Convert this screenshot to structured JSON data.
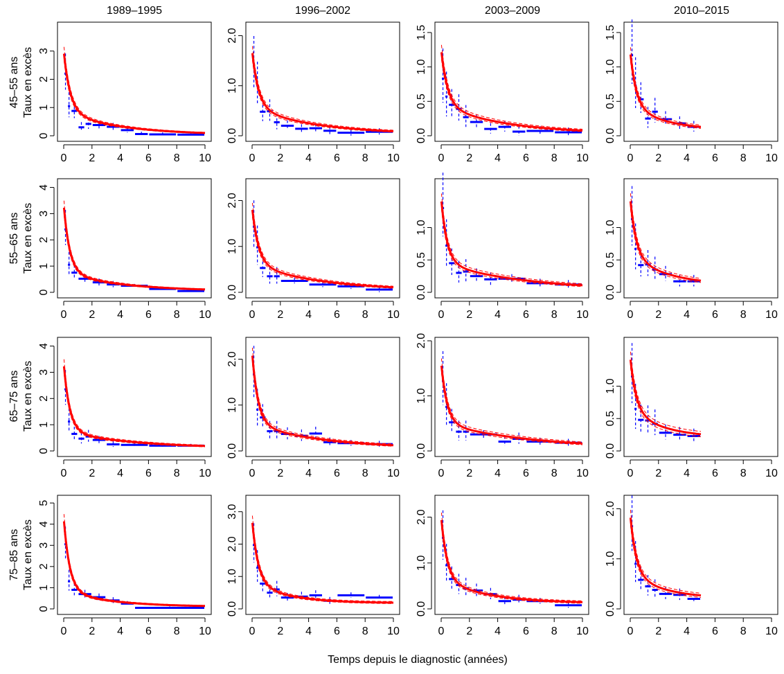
{
  "figure": {
    "xlabel": "Temps depuis le diagnostic (années)"
  },
  "periods": [
    "1989–1995",
    "1996–2002",
    "2003–2009",
    "2010–2015"
  ],
  "age_groups": [
    "45–55 ans",
    "55–65 ans",
    "65–75 ans",
    "75–85 ans"
  ],
  "ylabel": "Taux en excès",
  "colors": {
    "model": "#ff0000",
    "observed": "#0000ff",
    "axis": "#000000"
  },
  "chart_data": {
    "type": "line",
    "layout": "4x4 small multiples (rows: age groups, columns: periods)",
    "xlim": [
      0,
      10
    ],
    "xticks": [
      "0",
      "2",
      "4",
      "6",
      "8",
      "10"
    ],
    "series_styles": {
      "model": "red solid curve with dashed confidence band",
      "observed": "blue horizontal segments (interval estimates) with dashed vertical error bars"
    },
    "panels": [
      {
        "row": 0,
        "col": 0,
        "ylim": [
          0,
          3.9
        ],
        "yticks": [
          "0",
          "1",
          "2",
          "3"
        ],
        "ytick_values": [
          0,
          1,
          2,
          3
        ],
        "model": {
          "y0": 3.0,
          "asym": 0.03,
          "k1": 2.2,
          "k2": 0.25,
          "split": 0.72,
          "maxt": 10
        },
        "observed": [
          [
            0,
            0.25,
            2.2
          ],
          [
            0.25,
            0.5,
            1.05
          ],
          [
            0.5,
            1,
            0.88
          ],
          [
            1,
            1.5,
            0.3
          ],
          [
            1.5,
            2,
            0.42
          ],
          [
            2,
            3,
            0.38
          ],
          [
            3,
            4,
            0.32
          ],
          [
            4,
            5,
            0.2
          ],
          [
            5,
            6,
            0.06
          ],
          [
            6,
            8,
            0.05
          ],
          [
            8,
            10,
            0.04
          ]
        ]
      },
      {
        "row": 0,
        "col": 1,
        "ylim": [
          0,
          2.2
        ],
        "yticks": [
          "0.0",
          "1.0",
          "2.0"
        ],
        "ytick_values": [
          0,
          1,
          2
        ],
        "model": {
          "y0": 1.7,
          "asym": 0.03,
          "k1": 2.2,
          "k2": 0.22,
          "split": 0.68,
          "maxt": 10
        },
        "observed": [
          [
            0,
            0.25,
            1.42
          ],
          [
            0.25,
            0.5,
            1.0
          ],
          [
            0.5,
            1,
            0.48
          ],
          [
            1,
            1.5,
            0.49
          ],
          [
            1.5,
            2,
            0.27
          ],
          [
            2,
            3,
            0.2
          ],
          [
            3,
            4,
            0.14
          ],
          [
            4,
            5,
            0.15
          ],
          [
            5,
            6,
            0.1
          ],
          [
            6,
            8,
            0.06
          ],
          [
            8,
            10,
            0.08
          ]
        ]
      },
      {
        "row": 0,
        "col": 2,
        "ylim": [
          0,
          1.6
        ],
        "yticks": [
          "0.0",
          "0.5",
          "1.0",
          "1.5"
        ],
        "ytick_values": [
          0,
          0.5,
          1,
          1.5
        ],
        "model": {
          "y0": 1.25,
          "asym": 0.03,
          "k1": 2.2,
          "k2": 0.22,
          "split": 0.66,
          "maxt": 10
        },
        "observed": [
          [
            0,
            0.25,
            0.83
          ],
          [
            0.25,
            0.5,
            0.57
          ],
          [
            0.5,
            1,
            0.45
          ],
          [
            1,
            1.5,
            0.39
          ],
          [
            1.5,
            2,
            0.27
          ],
          [
            2,
            3,
            0.2
          ],
          [
            3,
            4,
            0.1
          ],
          [
            4,
            5,
            0.13
          ],
          [
            5,
            6,
            0.06
          ],
          [
            6,
            8,
            0.07
          ],
          [
            8,
            10,
            0.05
          ]
        ]
      },
      {
        "row": 0,
        "col": 3,
        "ylim": [
          0,
          1.6
        ],
        "yticks": [
          "0.0",
          "0.5",
          "1.0",
          "1.5"
        ],
        "ytick_values": [
          0,
          0.5,
          1,
          1.5
        ],
        "model": {
          "y0": 1.22,
          "asym": 0.08,
          "k1": 2.4,
          "k2": 0.4,
          "split": 0.68,
          "maxt": 5
        },
        "observed": [
          [
            0,
            0.25,
            1.17
          ],
          [
            0.25,
            0.5,
            0.73
          ],
          [
            0.5,
            1,
            0.53
          ],
          [
            1,
            1.5,
            0.25
          ],
          [
            1.5,
            2,
            0.35
          ],
          [
            2,
            3,
            0.24
          ],
          [
            3,
            4,
            0.18
          ],
          [
            4,
            5,
            0.13
          ]
        ]
      },
      {
        "row": 1,
        "col": 0,
        "ylim": [
          0,
          4.2
        ],
        "yticks": [
          "0",
          "1",
          "2",
          "3",
          "4"
        ],
        "ytick_values": [
          0,
          1,
          2,
          3,
          4
        ],
        "model": {
          "y0": 3.35,
          "asym": 0.05,
          "k1": 2.4,
          "k2": 0.25,
          "split": 0.78,
          "maxt": 10
        },
        "observed": [
          [
            0,
            0.25,
            2.4
          ],
          [
            0.25,
            0.5,
            1.05
          ],
          [
            0.5,
            1,
            0.75
          ],
          [
            1,
            2,
            0.52
          ],
          [
            2,
            3,
            0.38
          ],
          [
            3,
            4,
            0.3
          ],
          [
            4,
            6,
            0.25
          ],
          [
            6,
            8,
            0.13
          ],
          [
            8,
            10,
            0.05
          ]
        ]
      },
      {
        "row": 1,
        "col": 1,
        "ylim": [
          0,
          2.4
        ],
        "yticks": [
          "0.0",
          "1.0",
          "2.0"
        ],
        "ytick_values": [
          0,
          1,
          2
        ],
        "model": {
          "y0": 1.85,
          "asym": 0.03,
          "k1": 2.2,
          "k2": 0.2,
          "split": 0.68,
          "maxt": 10
        },
        "observed": [
          [
            0,
            0.25,
            1.43
          ],
          [
            0.25,
            0.5,
            0.98
          ],
          [
            0.5,
            1,
            0.53
          ],
          [
            1,
            1.5,
            0.35
          ],
          [
            1.5,
            2,
            0.35
          ],
          [
            2,
            4,
            0.25
          ],
          [
            4,
            6,
            0.17
          ],
          [
            6,
            8,
            0.13
          ],
          [
            8,
            10,
            0.06
          ]
        ]
      },
      {
        "row": 1,
        "col": 2,
        "ylim": [
          0,
          1.7
        ],
        "yticks": [
          "0.0",
          "0.5",
          "1.0"
        ],
        "ytick_values": [
          0,
          0.5,
          1
        ],
        "model": {
          "y0": 1.45,
          "asym": 0.03,
          "k1": 2.4,
          "k2": 0.17,
          "split": 0.7,
          "maxt": 10
        },
        "observed": [
          [
            0,
            0.25,
            1.3
          ],
          [
            0.25,
            0.5,
            0.72
          ],
          [
            0.5,
            1,
            0.45
          ],
          [
            1,
            1.5,
            0.3
          ],
          [
            1.5,
            2,
            0.32
          ],
          [
            2,
            3,
            0.25
          ],
          [
            3,
            4,
            0.2
          ],
          [
            4,
            6,
            0.21
          ],
          [
            6,
            8,
            0.14
          ],
          [
            8,
            10,
            0.12
          ]
        ]
      },
      {
        "row": 1,
        "col": 3,
        "ylim": [
          0,
          1.7
        ],
        "yticks": [
          "0.0",
          "0.5",
          "1.0"
        ],
        "ytick_values": [
          0,
          0.5,
          1
        ],
        "model": {
          "y0": 1.45,
          "asym": 0.1,
          "k1": 2.4,
          "k2": 0.35,
          "split": 0.66,
          "maxt": 5
        },
        "observed": [
          [
            0,
            0.25,
            1.13
          ],
          [
            0.25,
            0.5,
            0.67
          ],
          [
            0.5,
            1,
            0.42
          ],
          [
            1,
            1.5,
            0.43
          ],
          [
            1.5,
            2,
            0.35
          ],
          [
            2,
            3,
            0.28
          ],
          [
            3,
            4,
            0.17
          ],
          [
            4,
            5,
            0.17
          ]
        ]
      },
      {
        "row": 2,
        "col": 0,
        "ylim": [
          0,
          4.2
        ],
        "yticks": [
          "0",
          "1",
          "2",
          "3",
          "4"
        ],
        "ytick_values": [
          0,
          1,
          2,
          3,
          4
        ],
        "model": {
          "y0": 3.35,
          "asym": 0.1,
          "k1": 2.4,
          "k2": 0.2,
          "split": 0.8,
          "maxt": 10
        },
        "observed": [
          [
            0,
            0.25,
            2.35
          ],
          [
            0.25,
            0.5,
            1.12
          ],
          [
            0.5,
            1,
            0.65
          ],
          [
            1,
            1.5,
            0.47
          ],
          [
            1.5,
            2,
            0.55
          ],
          [
            2,
            3,
            0.42
          ],
          [
            3,
            4,
            0.25
          ],
          [
            4,
            6,
            0.23
          ],
          [
            6,
            8,
            0.2
          ],
          [
            8,
            10,
            0.2
          ]
        ]
      },
      {
        "row": 2,
        "col": 1,
        "ylim": [
          0,
          2.4
        ],
        "yticks": [
          "0.0",
          "1.0",
          "2.0"
        ],
        "ytick_values": [
          0,
          1,
          2
        ],
        "model": {
          "y0": 2.15,
          "asym": 0.05,
          "k1": 2.4,
          "k2": 0.2,
          "split": 0.74,
          "maxt": 10
        },
        "observed": [
          [
            0,
            0.25,
            1.67
          ],
          [
            0.25,
            0.5,
            0.9
          ],
          [
            0.5,
            1,
            0.73
          ],
          [
            1,
            1.5,
            0.43
          ],
          [
            1.5,
            2,
            0.43
          ],
          [
            2,
            3,
            0.37
          ],
          [
            3,
            4,
            0.33
          ],
          [
            4,
            5,
            0.38
          ],
          [
            5,
            6,
            0.19
          ],
          [
            6,
            8,
            0.17
          ],
          [
            8,
            10,
            0.15
          ]
        ]
      },
      {
        "row": 2,
        "col": 2,
        "ylim": [
          0,
          2.0
        ],
        "yticks": [
          "0.0",
          "1.0",
          "2.0"
        ],
        "ytick_values": [
          0,
          1,
          2
        ],
        "model": {
          "y0": 1.6,
          "asym": 0.03,
          "k1": 2.4,
          "k2": 0.15,
          "split": 0.7,
          "maxt": 10
        },
        "observed": [
          [
            0,
            0.25,
            1.27
          ],
          [
            0.25,
            0.5,
            0.8
          ],
          [
            0.5,
            1,
            0.52
          ],
          [
            1,
            1.5,
            0.35
          ],
          [
            1.5,
            2,
            0.35
          ],
          [
            2,
            4,
            0.3
          ],
          [
            4,
            5,
            0.17
          ],
          [
            5,
            6,
            0.22
          ],
          [
            6,
            8,
            0.17
          ],
          [
            8,
            10,
            0.15
          ]
        ]
      },
      {
        "row": 2,
        "col": 3,
        "ylim": [
          0,
          1.7
        ],
        "yticks": [
          "0.0",
          "0.5",
          "1.0"
        ],
        "ytick_values": [
          0,
          0.5,
          1
        ],
        "model": {
          "y0": 1.45,
          "asym": 0.2,
          "k1": 2.4,
          "k2": 0.4,
          "split": 0.66,
          "maxt": 5
        },
        "observed": [
          [
            0,
            0.25,
            1.15
          ],
          [
            0.25,
            0.5,
            0.65
          ],
          [
            0.5,
            1,
            0.48
          ],
          [
            1,
            1.5,
            0.47
          ],
          [
            1.5,
            2,
            0.42
          ],
          [
            2,
            3,
            0.28
          ],
          [
            3,
            4,
            0.25
          ],
          [
            4,
            5,
            0.23
          ]
        ]
      },
      {
        "row": 3,
        "col": 0,
        "ylim": [
          0,
          5.2
        ],
        "yticks": [
          "0",
          "1",
          "2",
          "3",
          "4",
          "5"
        ],
        "ytick_values": [
          0,
          1,
          2,
          3,
          4,
          5
        ],
        "model": {
          "y0": 4.3,
          "asym": 0.1,
          "k1": 2.4,
          "k2": 0.3,
          "split": 0.82,
          "maxt": 10
        },
        "observed": [
          [
            0,
            0.25,
            3.05
          ],
          [
            0.25,
            0.5,
            1.3
          ],
          [
            0.5,
            1,
            0.9
          ],
          [
            1,
            2,
            0.7
          ],
          [
            2,
            3,
            0.55
          ],
          [
            3,
            4,
            0.4
          ],
          [
            4,
            5,
            0.25
          ],
          [
            5,
            10,
            0.05
          ]
        ]
      },
      {
        "row": 3,
        "col": 1,
        "ylim": [
          0,
          3.4
        ],
        "yticks": [
          "0.0",
          "1.0",
          "2.0",
          "3.0"
        ],
        "ytick_values": [
          0,
          1,
          2,
          3
        ],
        "model": {
          "y0": 2.75,
          "asym": 0.18,
          "k1": 2.4,
          "k2": 0.4,
          "split": 0.74,
          "maxt": 10
        },
        "observed": [
          [
            0,
            0.25,
            1.97
          ],
          [
            0.25,
            0.5,
            1.27
          ],
          [
            0.5,
            1,
            0.78
          ],
          [
            1,
            1.5,
            0.5
          ],
          [
            1.5,
            2,
            0.6
          ],
          [
            2,
            3,
            0.35
          ],
          [
            3,
            4,
            0.38
          ],
          [
            4,
            5,
            0.42
          ],
          [
            5,
            6,
            0.25
          ],
          [
            6,
            8,
            0.42
          ],
          [
            8,
            10,
            0.35
          ]
        ]
      },
      {
        "row": 3,
        "col": 2,
        "ylim": [
          0,
          2.4
        ],
        "yticks": [
          "0.0",
          "1.0",
          "2.0"
        ],
        "ytick_values": [
          0,
          1,
          2
        ],
        "model": {
          "y0": 2.0,
          "asym": 0.12,
          "k1": 2.4,
          "k2": 0.3,
          "split": 0.72,
          "maxt": 10
        },
        "observed": [
          [
            0,
            0.25,
            1.55
          ],
          [
            0.25,
            0.5,
            0.95
          ],
          [
            0.5,
            1,
            0.65
          ],
          [
            1,
            1.5,
            0.52
          ],
          [
            1.5,
            2,
            0.45
          ],
          [
            2,
            3,
            0.4
          ],
          [
            3,
            4,
            0.32
          ],
          [
            4,
            5,
            0.17
          ],
          [
            5,
            6,
            0.2
          ],
          [
            6,
            8,
            0.17
          ],
          [
            8,
            10,
            0.08
          ]
        ]
      },
      {
        "row": 3,
        "col": 3,
        "ylim": [
          0,
          2.2
        ],
        "yticks": [
          "0.0",
          "1.0",
          "2.0"
        ],
        "ytick_values": [
          0,
          1,
          2
        ],
        "model": {
          "y0": 1.88,
          "asym": 0.2,
          "k1": 2.4,
          "k2": 0.4,
          "split": 0.7,
          "maxt": 5
        },
        "observed": [
          [
            0,
            0.25,
            1.65
          ],
          [
            0.25,
            0.5,
            0.9
          ],
          [
            0.5,
            1,
            0.58
          ],
          [
            1,
            1.5,
            0.45
          ],
          [
            1.5,
            2,
            0.38
          ],
          [
            2,
            3,
            0.3
          ],
          [
            3,
            4,
            0.28
          ],
          [
            4,
            5,
            0.2
          ]
        ]
      }
    ]
  }
}
